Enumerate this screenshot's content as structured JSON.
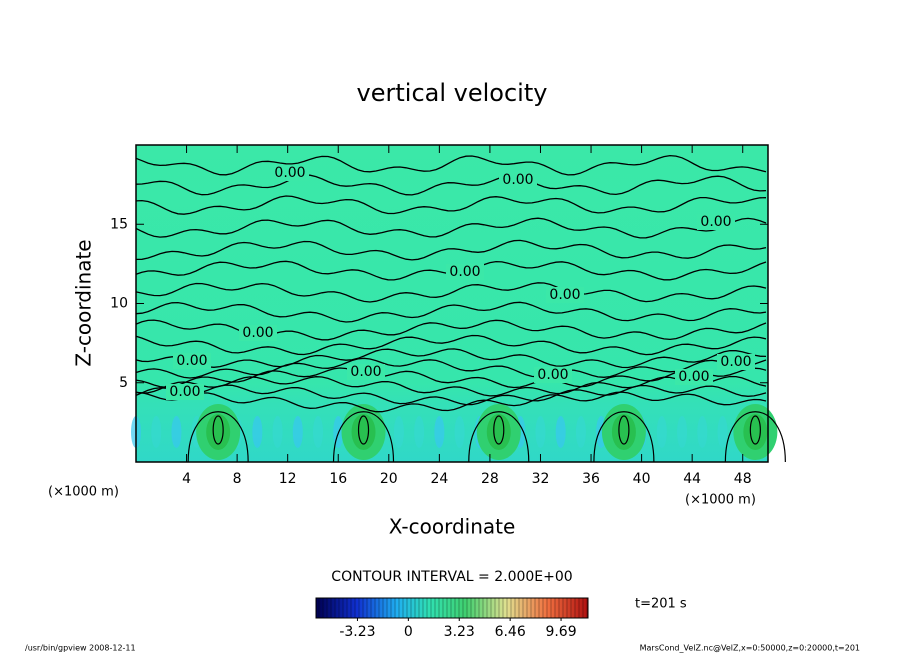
{
  "chart_data": {
    "type": "contour",
    "title": "vertical velocity",
    "x_label": "X-coordinate",
    "y_label": "Z-coordinate",
    "unit_label": "(×1000 m)",
    "xlim": [
      0,
      50
    ],
    "xticks": [
      4,
      8,
      12,
      16,
      20,
      24,
      28,
      32,
      36,
      40,
      44,
      48
    ],
    "ylim": [
      0,
      20
    ],
    "yticks": [
      5,
      10,
      15
    ],
    "contour_labels": [
      "0.00",
      "0.00",
      "0.00",
      "0.00",
      "0.00",
      "0.00",
      "0.00",
      "0.00",
      "0.00",
      "0.00",
      "0.00",
      "0.00"
    ],
    "contour_interval_text": "CONTOUR INTERVAL = 2.000E+00",
    "colorbar_lim": [
      -5.86,
      11.4
    ],
    "colorbar_ticks": [
      -3.23,
      0,
      3.23,
      6.46,
      9.69
    ],
    "time_text": "t=201 s",
    "footer_left": "/usr/bin/gpview   2008-12-11",
    "footer_right": "MarsCond_VelZ.nc@VelZ,x=0:50000,z=0:20000,t=201"
  }
}
